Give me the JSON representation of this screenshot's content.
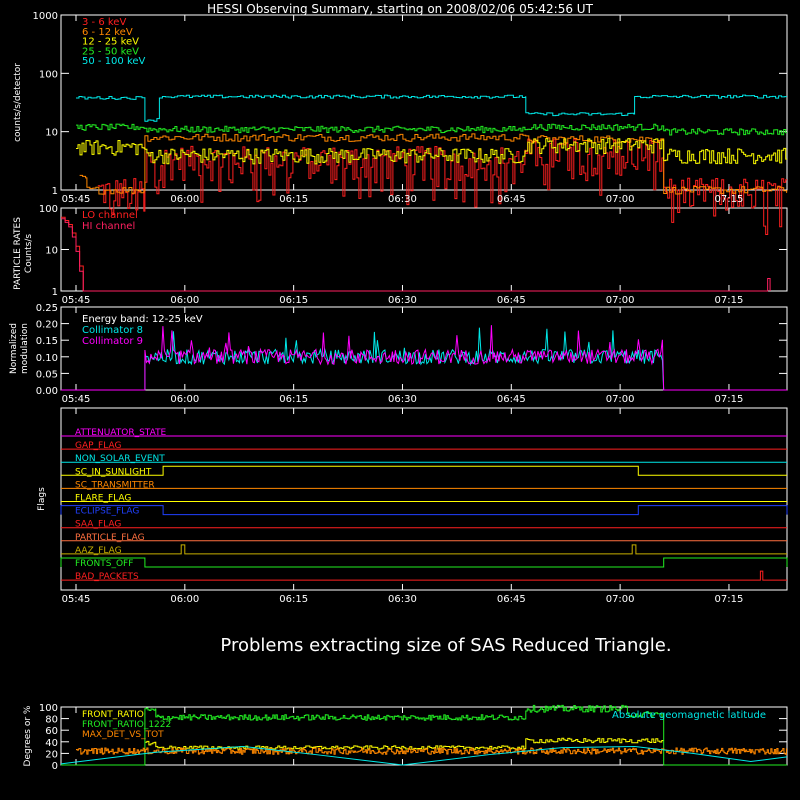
{
  "title": "HESSI Observing Summary, starting on 2008/02/06 05:42:56 UT",
  "colors": {
    "background": "#000000",
    "axes": "#ffffff",
    "red": "#ff2020",
    "orange": "#ff8800",
    "yellow": "#ffff00",
    "green": "#22ee22",
    "cyan": "#00e8e8",
    "magenta": "#ff00ff",
    "blue": "#2040ff",
    "olive": "#c8b000",
    "brown": "#ff7040"
  },
  "time_axis": {
    "start": "05:42:56",
    "end": "07:23:00",
    "ticks": [
      "05:45",
      "06:00",
      "06:15",
      "06:30",
      "06:45",
      "07:00",
      "07:15"
    ]
  },
  "message": "Problems extracting size of SAS Reduced Triangle.",
  "chart_data": [
    {
      "type": "line",
      "panel": "counts",
      "ylabel": "counts/s/detector",
      "yscale": "log",
      "ylim": [
        1,
        1000
      ],
      "yticks": [
        "1",
        "10",
        "100",
        "1000"
      ],
      "series": [
        {
          "name": "3 - 6 keV",
          "color": "#ff2020",
          "segments": [
            {
              "t": [
                "05:48:00",
                "05:54:30"
              ],
              "level": 1
            },
            {
              "t": [
                "05:54:30",
                "06:47:00"
              ],
              "level": 3.5
            },
            {
              "t": [
                "06:47:00",
                "07:06:00"
              ],
              "level": 4.8
            },
            {
              "t": [
                "07:06:00",
                "07:23:00"
              ],
              "level": 1
            }
          ]
        },
        {
          "name": "6 - 12 keV",
          "color": "#ff8800",
          "segments": [
            {
              "t": [
                "05:45:30",
                "05:46:30"
              ],
              "level": 1.6
            },
            {
              "t": [
                "05:46:30",
                "05:54:30"
              ],
              "level": 1
            },
            {
              "t": [
                "05:54:30",
                "06:47:00"
              ],
              "level": 8
            },
            {
              "t": [
                "06:47:00",
                "07:06:00"
              ],
              "level": 7.5
            },
            {
              "t": [
                "07:06:00",
                "07:23:00"
              ],
              "level": 1
            }
          ]
        },
        {
          "name": "12 - 25 keV",
          "color": "#ffff00",
          "segments": [
            {
              "t": [
                "05:45:00",
                "05:54:30"
              ],
              "level": 5.5
            },
            {
              "t": [
                "05:54:30",
                "06:47:00"
              ],
              "level": 4
            },
            {
              "t": [
                "06:47:00",
                "07:06:00"
              ],
              "level": 6
            },
            {
              "t": [
                "07:06:00",
                "07:23:00"
              ],
              "level": 4
            }
          ]
        },
        {
          "name": "25 - 50 keV",
          "color": "#22ee22",
          "segments": [
            {
              "t": [
                "05:45:00",
                "05:54:30"
              ],
              "level": 12
            },
            {
              "t": [
                "05:54:30",
                "06:47:00"
              ],
              "level": 11
            },
            {
              "t": [
                "06:47:00",
                "07:06:00"
              ],
              "level": 12
            },
            {
              "t": [
                "07:06:00",
                "07:23:00"
              ],
              "level": 10
            }
          ]
        },
        {
          "name": "50 - 100 keV",
          "color": "#00e8e8",
          "segments": [
            {
              "t": [
                "05:45:00",
                "05:54:30"
              ],
              "level": 38
            },
            {
              "t": [
                "05:54:30",
                "05:56:30"
              ],
              "level": 16
            },
            {
              "t": [
                "05:56:30",
                "06:47:00"
              ],
              "level": 40
            },
            {
              "t": [
                "06:47:00",
                "07:02:00"
              ],
              "level": 20
            },
            {
              "t": [
                "07:02:00",
                "07:23:00"
              ],
              "level": 40
            }
          ]
        }
      ]
    },
    {
      "type": "line",
      "panel": "particles",
      "ylabel": "PARTICLE RATES\nCounts/s",
      "ylim": [
        1,
        100
      ],
      "yscale": "log",
      "yticks": [
        "1",
        "10",
        "100"
      ],
      "series": [
        {
          "name": "LO channel",
          "color": "#ff2020",
          "points": [
            [
              "05:42:56",
              60
            ],
            [
              "05:43:30",
              50
            ],
            [
              "05:44:00",
              40
            ],
            [
              "05:44:30",
              25
            ],
            [
              "05:45:00",
              12
            ],
            [
              "05:45:30",
              4
            ],
            [
              "05:46:00",
              1
            ]
          ]
        },
        {
          "name": "HI channel",
          "color": "#ff2060",
          "points": [
            [
              "05:42:56",
              55
            ],
            [
              "05:43:30",
              45
            ],
            [
              "05:44:00",
              35
            ],
            [
              "05:44:30",
              20
            ],
            [
              "05:45:00",
              9
            ],
            [
              "05:45:30",
              3
            ],
            [
              "05:46:00",
              1
            ],
            [
              "07:20:00",
              1
            ],
            [
              "07:20:20",
              2
            ],
            [
              "07:20:40",
              1
            ]
          ]
        }
      ]
    },
    {
      "type": "line",
      "panel": "modulation",
      "ylabel": "Normalized\nmodulation",
      "annotation": "Energy band: 12-25 keV",
      "ylim": [
        0,
        0.25
      ],
      "yticks": [
        "0.00",
        "0.05",
        "0.10",
        "0.15",
        "0.20",
        "0.25"
      ],
      "window": [
        "05:54:30",
        "07:06:00"
      ],
      "series": [
        {
          "name": "Collimator 8",
          "color": "#00e8e8",
          "mean": 0.1
        },
        {
          "name": "Collimator 9",
          "color": "#ff00ff",
          "mean": 0.1
        }
      ]
    },
    {
      "type": "line",
      "panel": "flags",
      "ylabel": "Flags",
      "flags": [
        {
          "name": "ATTENUATOR_STATE",
          "color": "#ff00ff",
          "high": []
        },
        {
          "name": "GAP_FLAG",
          "color": "#ff2020",
          "high": []
        },
        {
          "name": "NON_SOLAR_EVENT",
          "color": "#00e8e8",
          "high": []
        },
        {
          "name": "SC_IN_SUNLIGHT",
          "color": "#ffff00",
          "high": [
            [
              "05:57:00",
              "07:02:30"
            ]
          ]
        },
        {
          "name": "SC_TRANSMITTER",
          "color": "#ff8800",
          "high": []
        },
        {
          "name": "FLARE_FLAG",
          "color": "#ffff00",
          "high": []
        },
        {
          "name": "ECLIPSE_FLAG",
          "color": "#2040ff",
          "high": [
            [
              "05:42:56",
              "05:57:00"
            ],
            [
              "07:02:30",
              "07:23:00"
            ]
          ]
        },
        {
          "name": "SAA_FLAG",
          "color": "#ff2020",
          "high": []
        },
        {
          "name": "PARTICLE_FLAG",
          "color": "#ff7040",
          "high": []
        },
        {
          "name": "AAZ_FLAG",
          "color": "#c8b000",
          "high": [
            [
              "05:59:30",
              "06:00:00"
            ],
            [
              "07:01:40",
              "07:02:10"
            ]
          ]
        },
        {
          "name": "FRONTS_OFF",
          "color": "#22ee22",
          "high": [
            [
              "05:42:56",
              "05:54:30"
            ],
            [
              "07:06:00",
              "07:23:00"
            ]
          ]
        },
        {
          "name": "BAD_PACKETS",
          "color": "#ff2020",
          "high": [
            [
              "07:19:20",
              "07:19:40"
            ]
          ]
        }
      ]
    },
    {
      "type": "line",
      "panel": "ratios",
      "ylabel": "Degrees or %",
      "ylim": [
        0,
        100
      ],
      "yticks": [
        "0",
        "20",
        "40",
        "60",
        "80",
        "100"
      ],
      "annotation": "Absolute geomagnetic latitude",
      "series": [
        {
          "name": "FRONT_RATIO",
          "color": "#ffff00",
          "segments": [
            {
              "t": [
                "05:54:30",
                "05:56:00"
              ],
              "level": 38
            },
            {
              "t": [
                "05:56:00",
                "06:47:00"
              ],
              "level": 30
            },
            {
              "t": [
                "06:47:00",
                "07:06:00"
              ],
              "level": 42
            }
          ]
        },
        {
          "name": "FRONT_RATIO_1222",
          "color": "#22ee22",
          "segments": [
            {
              "t": [
                "05:42:56",
                "05:54:30"
              ],
              "level": 0
            },
            {
              "t": [
                "05:54:30",
                "05:56:00"
              ],
              "level": 94
            },
            {
              "t": [
                "05:56:00",
                "06:47:00"
              ],
              "level": 82
            },
            {
              "t": [
                "06:47:00",
                "07:01:00"
              ],
              "level": 97
            },
            {
              "t": [
                "07:01:00",
                "07:06:00"
              ],
              "level": 87
            },
            {
              "t": [
                "07:06:00",
                "07:23:00"
              ],
              "level": 0
            }
          ]
        },
        {
          "name": "MAX_DET_VS_TOT",
          "color": "#ff8800",
          "segments": [
            {
              "t": [
                "05:45:00",
                "07:23:00"
              ],
              "level": 24
            }
          ]
        },
        {
          "name": "Absolute geomagnetic latitude",
          "color": "#00e8e8",
          "points": [
            [
              "05:42:56",
              2
            ],
            [
              "05:56:00",
              22
            ],
            [
              "06:08:00",
              32
            ],
            [
              "06:18:00",
              18
            ],
            [
              "06:30:00",
              0
            ],
            [
              "06:42:00",
              18
            ],
            [
              "06:52:00",
              30
            ],
            [
              "07:02:00",
              32
            ],
            [
              "07:10:00",
              20
            ],
            [
              "07:18:00",
              6
            ],
            [
              "07:23:00",
              14
            ]
          ]
        }
      ]
    }
  ]
}
